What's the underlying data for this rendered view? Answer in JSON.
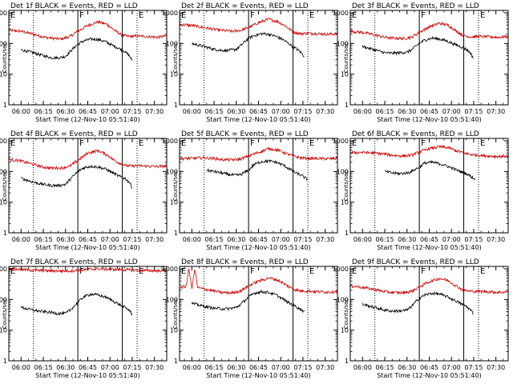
{
  "colors": {
    "events": "#000000",
    "lld": "#cc0000",
    "axis": "#000000"
  },
  "shared": {
    "xlabel": "Start Time (12-Nov-10 05:51:40)",
    "ylabel": "Counts/sec",
    "x_ticks": [
      "06:00",
      "06:15",
      "06:30",
      "06:45",
      "07:00",
      "07:15",
      "07:30"
    ],
    "y_ticks": [
      "1",
      "10",
      "100",
      "1000"
    ],
    "ylim": [
      1,
      1200
    ],
    "xlim_minutes": [
      -8.3,
      98.3
    ],
    "y_scale": "log",
    "marker_lines": [
      {
        "label": "E",
        "t": -8.3,
        "style": "solid"
      },
      {
        "label": "",
        "t": 8.3,
        "style": "dotted"
      },
      {
        "label": "F",
        "t": 38.3,
        "style": "solid"
      },
      {
        "label": "",
        "t": 68.3,
        "style": "solid"
      },
      {
        "label": "E",
        "t": 78.3,
        "style": "dotted"
      }
    ]
  },
  "chart_data": [
    {
      "type": "line",
      "title": "Det 1f BLACK = Events, RED = LLD",
      "series": [
        {
          "name": "LLD",
          "color": "#cc0000",
          "x": [
            -8.3,
            0,
            8.3,
            15,
            20,
            27,
            33,
            38.3,
            45,
            52,
            58,
            63,
            68.3,
            73,
            78.3,
            85,
            92,
            98.3
          ],
          "y": [
            270,
            250,
            200,
            165,
            150,
            140,
            170,
            250,
            390,
            510,
            420,
            270,
            185,
            170,
            175,
            170,
            160,
            175
          ]
        },
        {
          "name": "Events",
          "color": "#000000",
          "x": [
            0,
            8.3,
            15,
            20,
            25,
            30,
            33,
            38.3,
            42,
            47,
            52,
            57,
            62,
            66,
            70,
            73,
            75
          ],
          "y": [
            62,
            50,
            40,
            35,
            34,
            38,
            55,
            95,
            120,
            140,
            135,
            115,
            85,
            70,
            55,
            40,
            28
          ]
        }
      ]
    },
    {
      "type": "line",
      "title": "Det 2f BLACK = Events, RED = LLD",
      "series": [
        {
          "name": "LLD",
          "color": "#cc0000",
          "x": [
            -8.3,
            0,
            8.3,
            15,
            20,
            27,
            33,
            38.3,
            45,
            52,
            58,
            63,
            68.3,
            73,
            78.3,
            85,
            92,
            98.3
          ],
          "y": [
            420,
            390,
            330,
            290,
            270,
            250,
            270,
            330,
            480,
            620,
            520,
            380,
            240,
            210,
            215,
            210,
            200,
            210
          ]
        },
        {
          "name": "Events",
          "color": "#000000",
          "x": [
            0,
            8.3,
            15,
            20,
            25,
            30,
            33,
            38.3,
            42,
            47,
            52,
            57,
            62,
            66,
            70,
            73,
            76
          ],
          "y": [
            100,
            80,
            65,
            60,
            60,
            65,
            85,
            150,
            180,
            210,
            200,
            170,
            130,
            95,
            70,
            55,
            38
          ]
        }
      ]
    },
    {
      "type": "line",
      "title": "Det 3f BLACK = Events, RED = LLD",
      "series": [
        {
          "name": "LLD",
          "color": "#cc0000",
          "x": [
            -8.3,
            0,
            8.3,
            15,
            20,
            27,
            33,
            38.3,
            45,
            52,
            58,
            63,
            68.3,
            73,
            78.3,
            85,
            92,
            98.3
          ],
          "y": [
            250,
            230,
            190,
            160,
            150,
            145,
            160,
            230,
            350,
            460,
            390,
            260,
            180,
            165,
            170,
            165,
            160,
            170
          ]
        },
        {
          "name": "Events",
          "color": "#000000",
          "x": [
            0,
            8.3,
            15,
            20,
            25,
            30,
            33,
            38.3,
            42,
            47,
            52,
            57,
            62,
            66,
            70,
            73,
            75
          ],
          "y": [
            80,
            62,
            50,
            48,
            50,
            52,
            62,
            100,
            130,
            150,
            140,
            120,
            95,
            80,
            65,
            48,
            32
          ]
        }
      ]
    },
    {
      "type": "line",
      "title": "Det 4f BLACK = Events, RED = LLD",
      "series": [
        {
          "name": "LLD",
          "color": "#cc0000",
          "x": [
            -8.3,
            0,
            8.3,
            15,
            20,
            27,
            33,
            38.3,
            45,
            52,
            58,
            63,
            68.3,
            73,
            78.3,
            85,
            92,
            98.3
          ],
          "y": [
            250,
            220,
            170,
            140,
            130,
            130,
            150,
            230,
            400,
            480,
            350,
            230,
            170,
            150,
            155,
            150,
            145,
            150
          ]
        },
        {
          "name": "Events",
          "color": "#000000",
          "x": [
            0,
            8.3,
            15,
            20,
            25,
            30,
            33,
            38.3,
            42,
            47,
            52,
            57,
            62,
            66,
            70,
            73,
            75
          ],
          "y": [
            60,
            45,
            38,
            35,
            35,
            38,
            55,
            100,
            130,
            150,
            140,
            120,
            90,
            70,
            60,
            45,
            30
          ]
        }
      ]
    },
    {
      "type": "line",
      "title": "Det 5f BLACK = Events, RED = LLD",
      "series": [
        {
          "name": "LLD",
          "color": "#cc0000",
          "x": [
            -8.3,
            0,
            8.3,
            15,
            20,
            27,
            33,
            38.3,
            45,
            52,
            58,
            63,
            68.3,
            73,
            78.3,
            85,
            92,
            98.3
          ],
          "y": [
            260,
            270,
            280,
            265,
            245,
            240,
            255,
            320,
            420,
            560,
            500,
            400,
            320,
            280,
            270,
            265,
            260,
            265
          ]
        },
        {
          "name": "Events",
          "color": "#000000",
          "x": [
            10,
            15,
            20,
            25,
            30,
            33,
            38.3,
            42,
            47,
            52,
            57,
            62,
            66,
            70,
            74,
            78
          ],
          "y": [
            110,
            100,
            90,
            80,
            75,
            80,
            110,
            170,
            210,
            220,
            200,
            160,
            120,
            90,
            75,
            55
          ]
        }
      ]
    },
    {
      "type": "line",
      "title": "Det 6f BLACK = Events, RED = LLD",
      "series": [
        {
          "name": "LLD",
          "color": "#cc0000",
          "x": [
            -8.3,
            0,
            8.3,
            15,
            20,
            27,
            33,
            38.3,
            45,
            52,
            58,
            63,
            68.3,
            73,
            78.3,
            85,
            92,
            98.3
          ],
          "y": [
            410,
            420,
            400,
            370,
            340,
            320,
            340,
            430,
            560,
            640,
            600,
            480,
            400,
            360,
            340,
            320,
            310,
            320
          ]
        },
        {
          "name": "Events",
          "color": "#000000",
          "x": [
            15,
            20,
            25,
            30,
            33,
            38.3,
            42,
            47,
            52,
            57,
            62,
            66,
            70,
            73,
            76
          ],
          "y": [
            100,
            90,
            85,
            90,
            100,
            140,
            190,
            200,
            180,
            150,
            120,
            100,
            85,
            70,
            55
          ]
        }
      ]
    },
    {
      "type": "line",
      "title": "Det 7f BLACK = Events, RED = LLD",
      "series": [
        {
          "name": "LLD",
          "color": "#cc0000",
          "x": [
            -8.3,
            0,
            8.3,
            15,
            20,
            27,
            33,
            38.3,
            45,
            52,
            58,
            63,
            68.3,
            73,
            78.3,
            85,
            92,
            98.3
          ],
          "y": [
            1000,
            950,
            900,
            880,
            860,
            850,
            860,
            900,
            950,
            1000,
            980,
            960,
            940,
            920,
            900,
            880,
            870,
            880
          ]
        },
        {
          "name": "Events",
          "color": "#000000",
          "x": [
            0,
            8.3,
            15,
            20,
            25,
            30,
            33,
            38.3,
            42,
            47,
            52,
            57,
            62,
            66,
            70,
            73,
            75
          ],
          "y": [
            55,
            45,
            40,
            38,
            35,
            35,
            45,
            80,
            120,
            150,
            140,
            120,
            90,
            70,
            55,
            45,
            32
          ]
        }
      ]
    },
    {
      "type": "line",
      "title": "Det 8f BLACK = Events, RED = LLD",
      "series": [
        {
          "name": "LLD",
          "color": "#cc0000",
          "x": [
            -8.3,
            -4,
            -2,
            0,
            2,
            4,
            8.3,
            15,
            20,
            27,
            33,
            38.3,
            45,
            52,
            58,
            63,
            68.3,
            73,
            78.3,
            85,
            92,
            98.3
          ],
          "y": [
            250,
            260,
            1000,
            230,
            1000,
            240,
            220,
            190,
            170,
            165,
            190,
            280,
            400,
            500,
            430,
            310,
            220,
            190,
            190,
            180,
            175,
            185
          ]
        },
        {
          "name": "Events",
          "color": "#000000",
          "x": [
            0,
            8.3,
            15,
            20,
            25,
            30,
            33,
            38.3,
            42,
            47,
            52,
            57,
            62,
            66,
            70,
            73,
            76
          ],
          "y": [
            75,
            60,
            52,
            50,
            50,
            55,
            70,
            120,
            160,
            180,
            170,
            140,
            100,
            75,
            60,
            50,
            40
          ]
        }
      ]
    },
    {
      "type": "line",
      "title": "Det 9f BLACK = Events, RED = LLD",
      "series": [
        {
          "name": "LLD",
          "color": "#cc0000",
          "x": [
            -8.3,
            0,
            8.3,
            15,
            20,
            27,
            33,
            38.3,
            45,
            52,
            58,
            63,
            68.3,
            73,
            78.3,
            85,
            92,
            98.3
          ],
          "y": [
            280,
            250,
            210,
            180,
            170,
            165,
            185,
            260,
            380,
            490,
            410,
            280,
            200,
            185,
            185,
            180,
            170,
            180
          ]
        },
        {
          "name": "Events",
          "color": "#000000",
          "x": [
            0,
            8.3,
            15,
            20,
            25,
            30,
            33,
            38.3,
            42,
            47,
            52,
            57,
            62,
            66,
            70,
            73,
            75
          ],
          "y": [
            70,
            55,
            45,
            42,
            42,
            45,
            60,
            110,
            140,
            160,
            150,
            125,
            95,
            75,
            60,
            45,
            35
          ]
        }
      ]
    }
  ]
}
